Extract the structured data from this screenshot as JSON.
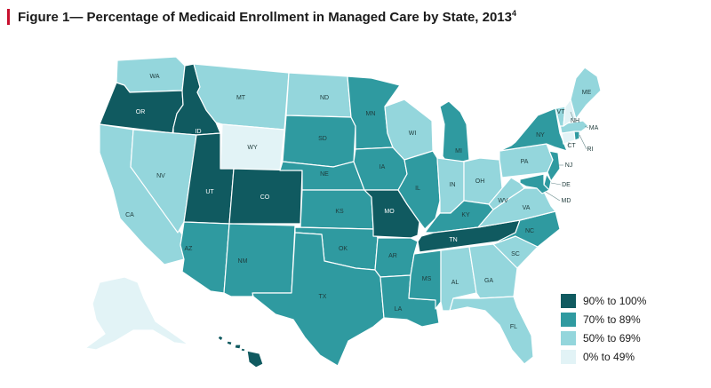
{
  "title": "Figure 1— Percentage of Medicaid Enrollment in Managed Care by State, 2013",
  "footnote": "4",
  "colors": {
    "90-100": "#105a60",
    "70-89": "#2f9aa0",
    "50-69": "#94d6dc",
    "0-49": "#e2f3f6"
  },
  "legend": [
    {
      "key": "90-100",
      "label": "90% to 100%"
    },
    {
      "key": "70-89",
      "label": "70% to 89%"
    },
    {
      "key": "50-69",
      "label": "50% to 69%"
    },
    {
      "key": "0-49",
      "label": "0% to 49%"
    }
  ],
  "states": [
    {
      "code": "WA",
      "label": "WA",
      "category": "50-69"
    },
    {
      "code": "OR",
      "label": "OR",
      "category": "90-100"
    },
    {
      "code": "CA",
      "label": "CA",
      "category": "50-69"
    },
    {
      "code": "ID",
      "label": "ID",
      "category": "90-100"
    },
    {
      "code": "NV",
      "label": "NV",
      "category": "50-69"
    },
    {
      "code": "MT",
      "label": "MT",
      "category": "50-69"
    },
    {
      "code": "WY",
      "label": "WY",
      "category": "0-49"
    },
    {
      "code": "UT",
      "label": "UT",
      "category": "90-100"
    },
    {
      "code": "CO",
      "label": "CO",
      "category": "90-100"
    },
    {
      "code": "AZ",
      "label": "AZ",
      "category": "70-89"
    },
    {
      "code": "NM",
      "label": "NM",
      "category": "70-89"
    },
    {
      "code": "ND",
      "label": "ND",
      "category": "50-69"
    },
    {
      "code": "SD",
      "label": "SD",
      "category": "70-89"
    },
    {
      "code": "NE",
      "label": "NE",
      "category": "70-89"
    },
    {
      "code": "KS",
      "label": "KS",
      "category": "70-89"
    },
    {
      "code": "OK",
      "label": "OK",
      "category": "70-89"
    },
    {
      "code": "TX",
      "label": "TX",
      "category": "70-89"
    },
    {
      "code": "MN",
      "label": "MN",
      "category": "70-89"
    },
    {
      "code": "IA",
      "label": "IA",
      "category": "70-89"
    },
    {
      "code": "MO",
      "label": "MO",
      "category": "90-100"
    },
    {
      "code": "AR",
      "label": "AR",
      "category": "70-89"
    },
    {
      "code": "LA",
      "label": "LA",
      "category": "70-89"
    },
    {
      "code": "WI",
      "label": "WI",
      "category": "50-69"
    },
    {
      "code": "IL",
      "label": "IL",
      "category": "70-89"
    },
    {
      "code": "MI",
      "label": "MI",
      "category": "70-89"
    },
    {
      "code": "IN",
      "label": "IN",
      "category": "50-69"
    },
    {
      "code": "OH",
      "label": "OH",
      "category": "50-69"
    },
    {
      "code": "KY",
      "label": "KY",
      "category": "70-89"
    },
    {
      "code": "TN",
      "label": "TN",
      "category": "90-100"
    },
    {
      "code": "MS",
      "label": "MS",
      "category": "70-89"
    },
    {
      "code": "AL",
      "label": "AL",
      "category": "50-69"
    },
    {
      "code": "GA",
      "label": "GA",
      "category": "50-69"
    },
    {
      "code": "FL",
      "label": "FL",
      "category": "50-69"
    },
    {
      "code": "SC",
      "label": "SC",
      "category": "50-69"
    },
    {
      "code": "NC",
      "label": "NC",
      "category": "70-89"
    },
    {
      "code": "VA",
      "label": "VA",
      "category": "50-69"
    },
    {
      "code": "WV",
      "label": "WV",
      "category": "50-69"
    },
    {
      "code": "PA",
      "label": "PA",
      "category": "50-69"
    },
    {
      "code": "NY",
      "label": "NY",
      "category": "70-89"
    },
    {
      "code": "NJ",
      "label": "NJ",
      "category": "70-89"
    },
    {
      "code": "DE",
      "label": "DE",
      "category": "70-89"
    },
    {
      "code": "MD",
      "label": "MD",
      "category": "70-89"
    },
    {
      "code": "CT",
      "label": "CT",
      "category": "0-49"
    },
    {
      "code": "RI",
      "label": "RI",
      "category": "70-89"
    },
    {
      "code": "MA",
      "label": "MA",
      "category": "50-69"
    },
    {
      "code": "VT",
      "label": "VT",
      "category": "50-69"
    },
    {
      "code": "NH",
      "label": "NH",
      "category": "0-49"
    },
    {
      "code": "ME",
      "label": "ME",
      "category": "50-69"
    },
    {
      "code": "AK",
      "label": "",
      "category": "0-49"
    },
    {
      "code": "HI",
      "label": "",
      "category": "90-100"
    }
  ]
}
